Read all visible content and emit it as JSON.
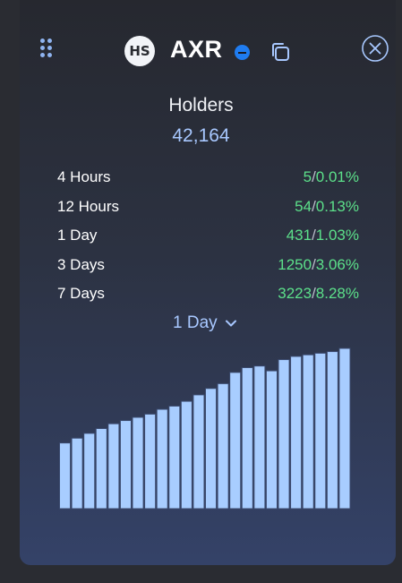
{
  "header": {
    "avatar_text": "HS",
    "symbol": "AXR",
    "icons": {
      "drag": "drag-handle-icon",
      "verified": "verified-badge-icon",
      "copy": "copy-icon",
      "close": "close-icon"
    }
  },
  "holders": {
    "title": "Holders",
    "total": "42,164"
  },
  "stats": [
    {
      "label": "4 Hours",
      "count": "5",
      "separator": "/",
      "percent": "0.01%"
    },
    {
      "label": "12 Hours",
      "count": "54",
      "separator": "/",
      "percent": "0.13%"
    },
    {
      "label": "1 Day",
      "count": "431",
      "separator": "/",
      "percent": "1.03%"
    },
    {
      "label": "3 Days",
      "count": "1250",
      "separator": "/",
      "percent": "3.06%"
    },
    {
      "label": "7 Days",
      "count": "3223",
      "separator": "/",
      "percent": "8.28%"
    }
  ],
  "period_selector": {
    "value": "1 Day",
    "icon": "chevron-down-icon"
  },
  "colors": {
    "accent": "#a8c8ff",
    "positive": "#5ce08a",
    "bar_fill": "#a8cdff",
    "bar_stroke": "#3b4a6e",
    "verified": "#1f7cf0"
  },
  "chart_data": {
    "type": "bar",
    "values": [
      0.41,
      0.44,
      0.47,
      0.5,
      0.53,
      0.55,
      0.57,
      0.59,
      0.62,
      0.64,
      0.67,
      0.71,
      0.75,
      0.78,
      0.85,
      0.88,
      0.89,
      0.86,
      0.93,
      0.95,
      0.96,
      0.97,
      0.98,
      1.0
    ],
    "title": "",
    "xlabel": "",
    "ylabel": "",
    "ylim": [
      0,
      1.0
    ],
    "grid": false
  }
}
